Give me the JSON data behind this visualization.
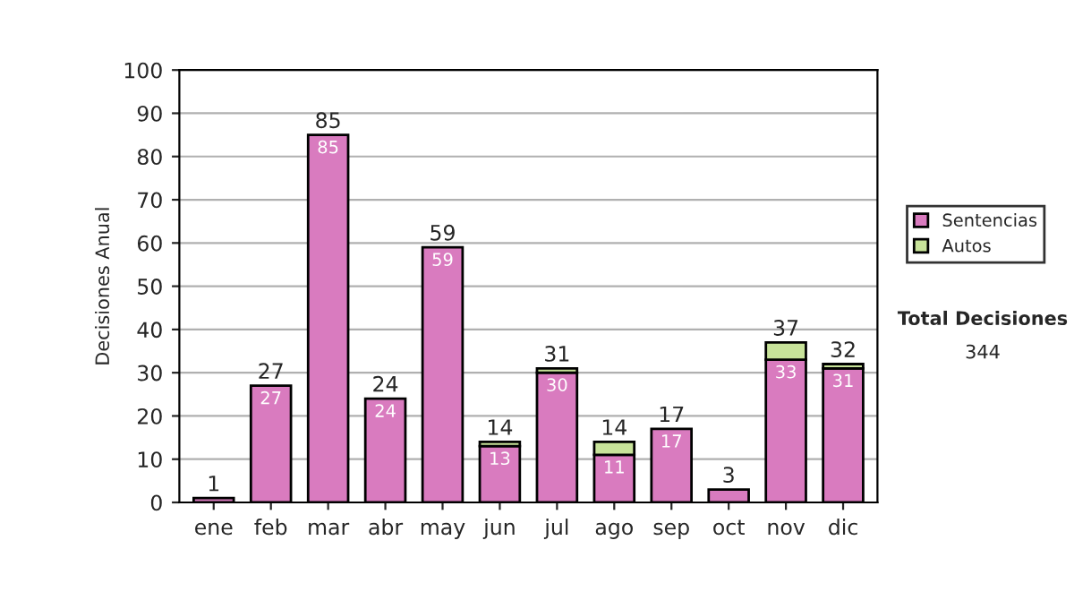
{
  "chart_data": {
    "type": "bar",
    "stacked": true,
    "ylabel": "Decisiones Anual",
    "categories": [
      "ene",
      "feb",
      "mar",
      "abr",
      "may",
      "jun",
      "jul",
      "ago",
      "sep",
      "oct",
      "nov",
      "dic"
    ],
    "series": [
      {
        "name": "Sentencias",
        "color": "#d97bbf",
        "values": [
          1,
          27,
          85,
          24,
          59,
          13,
          30,
          11,
          17,
          3,
          33,
          31
        ],
        "value_labels": [
          null,
          "27",
          "85",
          "24",
          "59",
          "13",
          "30",
          "11",
          "17",
          null,
          "33",
          "31"
        ]
      },
      {
        "name": "Autos",
        "color": "#c8e39a",
        "values": [
          null,
          null,
          null,
          null,
          null,
          1,
          1,
          3,
          null,
          null,
          4,
          1
        ]
      }
    ],
    "totals": [
      "1",
      "27",
      "85",
      "24",
      "59",
      "14",
      "31",
      "14",
      "17",
      "3",
      "37",
      "32"
    ],
    "ylim": [
      0,
      100
    ],
    "yticks": [
      0,
      10,
      20,
      30,
      40,
      50,
      60,
      70,
      80,
      90,
      100
    ],
    "grid": "y",
    "legend": "right",
    "annotations": [
      "Total Decisiones",
      "344"
    ]
  }
}
